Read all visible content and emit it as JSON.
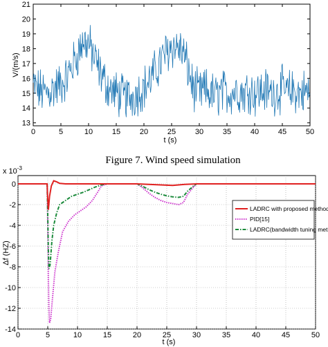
{
  "caption": "Figure 7.  Wind speed simulation",
  "chart_data": [
    {
      "type": "line",
      "title": "",
      "xlabel": "t (s)",
      "ylabel": "V/(m/s)",
      "xlim": [
        0,
        50
      ],
      "ylim": [
        12.8,
        21
      ],
      "xticks": [
        "0",
        "5",
        "10",
        "15",
        "20",
        "25",
        "30",
        "35",
        "40",
        "45",
        "50"
      ],
      "yticks": [
        "13",
        "14",
        "15",
        "16",
        "17",
        "18",
        "19",
        "20",
        "21"
      ],
      "grid": false,
      "series": [
        {
          "color": "#1f77b4",
          "x": [
            0,
            1,
            2,
            3,
            4,
            5,
            6,
            7,
            8,
            9,
            10,
            11,
            12,
            13,
            14,
            15,
            16,
            17,
            18,
            19,
            20,
            21,
            22,
            23,
            24,
            25,
            26,
            27,
            28,
            29,
            30,
            31,
            32,
            33,
            34,
            35,
            36,
            37,
            38,
            39,
            40,
            41,
            42,
            43,
            44,
            45,
            46,
            47,
            48,
            49,
            50
          ],
          "y": [
            15.5,
            15.2,
            15.0,
            15.1,
            15.4,
            15.6,
            16.0,
            16.8,
            17.6,
            18.5,
            18.3,
            17.4,
            16.5,
            15.7,
            15.2,
            15.0,
            14.8,
            14.7,
            14.8,
            15.1,
            15.4,
            15.8,
            16.4,
            17.1,
            17.7,
            18.2,
            18.1,
            17.8,
            16.6,
            15.2,
            15.0,
            15.2,
            15.0,
            14.8,
            15.1,
            15.0,
            15.1,
            15.2,
            15.0,
            15.3,
            15.0,
            15.1,
            15.2,
            15.0,
            15.1,
            15.3,
            15.0,
            15.2,
            15.0,
            15.1,
            15.0
          ]
        }
      ]
    },
    {
      "type": "line",
      "title": "",
      "xlabel": "t (s)",
      "ylabel": "Δf (HZ)",
      "exponent_label": "x 10",
      "exponent_power": "-3",
      "xlim": [
        0,
        50
      ],
      "ylim": [
        -14,
        0.8
      ],
      "xticks": [
        "0",
        "5",
        "10",
        "15",
        "20",
        "25",
        "30",
        "35",
        "40",
        "45",
        "50"
      ],
      "yticks": [
        "0",
        "-2",
        "-4",
        "-6",
        "-8",
        "-10",
        "-12",
        "-14"
      ],
      "grid": true,
      "legend_position": "top-right",
      "series": [
        {
          "name": "LADRC with proposed method",
          "color": "#e0201f",
          "style": "solid",
          "x": [
            0,
            4.9,
            5.0,
            5.1,
            5.3,
            5.6,
            6.0,
            6.5,
            7.0,
            8.0,
            10,
            15,
            20,
            22,
            24,
            26,
            27,
            28,
            30,
            35,
            40,
            45,
            50
          ],
          "y": [
            0,
            0,
            -1.5,
            -2.5,
            -1.2,
            -0.2,
            0.3,
            0.2,
            0.05,
            0,
            0,
            0,
            0,
            -0.05,
            -0.1,
            -0.15,
            -0.1,
            -0.05,
            0,
            0,
            0,
            0,
            0
          ]
        },
        {
          "name": "PID[15]",
          "color": "#cc33cc",
          "style": "dotted",
          "x": [
            0,
            4.9,
            5.0,
            5.1,
            5.2,
            5.3,
            5.5,
            5.8,
            6.2,
            6.8,
            7.5,
            8.5,
            9.5,
            10.5,
            11.5,
            12.5,
            13.5,
            14.0,
            15,
            20,
            21,
            22,
            23,
            24,
            25,
            26,
            27,
            27.8,
            28.5,
            29.5,
            30,
            35,
            40,
            45,
            50
          ],
          "y": [
            0,
            0,
            -4,
            -9,
            -12,
            -13.4,
            -13,
            -11,
            -8.5,
            -6.5,
            -4.6,
            -3.6,
            -3,
            -2.6,
            -2.2,
            -1.6,
            -0.7,
            -0.2,
            0,
            0,
            -0.4,
            -0.9,
            -1.3,
            -1.6,
            -1.8,
            -1.9,
            -2.0,
            -1.8,
            -1.0,
            -0.3,
            0,
            0,
            0,
            0,
            0
          ]
        },
        {
          "name": "LADRC(bandwidth tuning method)",
          "color": "#1a8a3a",
          "style": "dashdot",
          "x": [
            0,
            4.9,
            5.0,
            5.1,
            5.2,
            5.4,
            5.7,
            6.0,
            6.5,
            7.0,
            8.0,
            9.0,
            10,
            11,
            12,
            13,
            14,
            15,
            20,
            21,
            22,
            23,
            24,
            25,
            26,
            27,
            27.8,
            28.5,
            29.5,
            30,
            35,
            40,
            45,
            50
          ],
          "y": [
            0,
            0,
            -3,
            -6.5,
            -8.2,
            -7.8,
            -5.5,
            -4.0,
            -2.8,
            -2.0,
            -1.6,
            -1.2,
            -1.0,
            -0.8,
            -0.55,
            -0.3,
            -0.1,
            0,
            0,
            -0.25,
            -0.55,
            -0.8,
            -1.0,
            -1.15,
            -1.25,
            -1.3,
            -1.2,
            -0.7,
            -0.2,
            0,
            0,
            0,
            0,
            0
          ]
        }
      ]
    }
  ]
}
